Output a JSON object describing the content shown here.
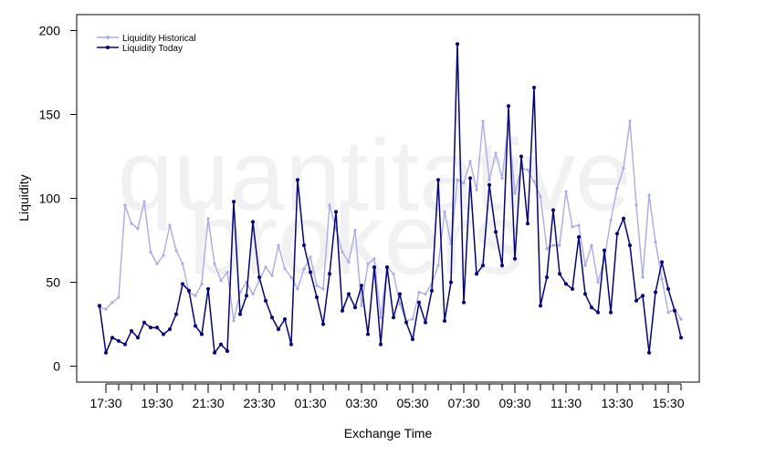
{
  "chart_data": {
    "type": "line",
    "xlabel": "Exchange Time",
    "ylabel": "Liquidity",
    "ylim": [
      -7,
      210
    ],
    "yticks": [
      0,
      50,
      100,
      150,
      200
    ],
    "x_tick_labels": [
      "17:30",
      "19:30",
      "21:30",
      "23:30",
      "01:30",
      "03:30",
      "05:30",
      "07:30",
      "09:30",
      "11:30",
      "13:30",
      "15:30"
    ],
    "watermark": [
      "quantitative",
      "brokers"
    ],
    "legend_position": "top-left",
    "series": [
      {
        "name": "Liquidity Historical",
        "color": "#aaaaee",
        "values": [
          35,
          34,
          38,
          41,
          96,
          85,
          82,
          98,
          68,
          61,
          66,
          84,
          69,
          61,
          44,
          42,
          49,
          88,
          61,
          51,
          56,
          27,
          44,
          50,
          43,
          51,
          59,
          54,
          72,
          58,
          53,
          46,
          58,
          65,
          48,
          46,
          96,
          82,
          68,
          62,
          81,
          36,
          61,
          64,
          29,
          59,
          55,
          37,
          27,
          28,
          44,
          43,
          49,
          60,
          92,
          73,
          111,
          109,
          122,
          105,
          146,
          111,
          127,
          112,
          145,
          103,
          118,
          117,
          110,
          101,
          70,
          72,
          72,
          104,
          83,
          84,
          60,
          72,
          50,
          64,
          87,
          106,
          118,
          146,
          96,
          53,
          102,
          74,
          52,
          32,
          34,
          28
        ]
      },
      {
        "name": "Liquidity Today",
        "color": "#000088",
        "values": [
          36,
          8,
          17,
          15,
          13,
          21,
          17,
          26,
          23,
          23,
          19,
          22,
          31,
          49,
          45,
          24,
          19,
          46,
          8,
          13,
          9,
          98,
          31,
          42,
          86,
          53,
          39,
          29,
          22,
          28,
          13,
          111,
          72,
          56,
          41,
          25,
          55,
          92,
          33,
          43,
          35,
          48,
          19,
          59,
          13,
          59,
          29,
          43,
          26,
          16,
          38,
          26,
          45,
          111,
          27,
          50,
          192,
          38,
          112,
          55,
          60,
          108,
          80,
          60,
          155,
          64,
          125,
          85,
          166,
          36,
          53,
          93,
          55,
          49,
          46,
          77,
          43,
          35,
          32,
          69,
          32,
          79,
          88,
          72,
          39,
          42,
          8,
          44,
          62,
          46,
          33,
          17
        ]
      }
    ]
  }
}
